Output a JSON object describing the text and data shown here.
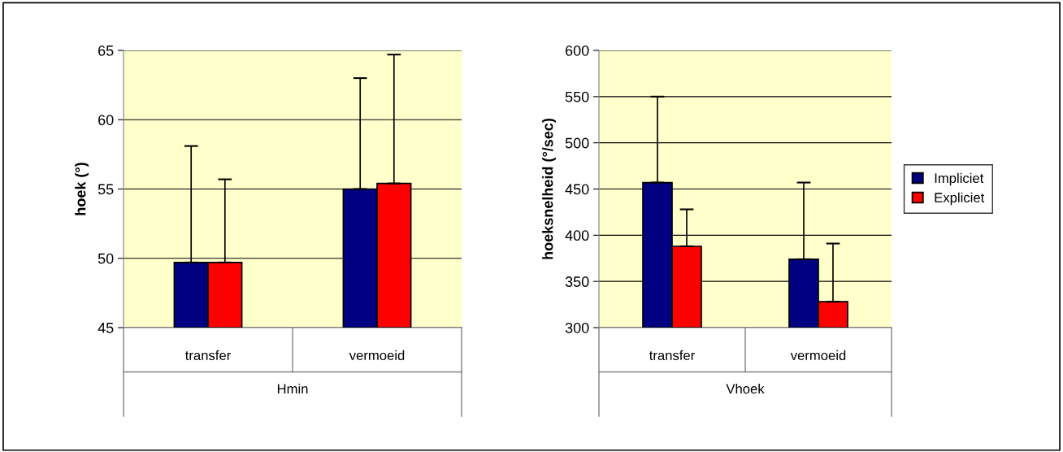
{
  "chart_data": [
    {
      "type": "bar",
      "categories": [
        "transfer",
        "vermoeid"
      ],
      "xlabel": "Hmin",
      "ylabel": "hoek (°)",
      "ylim": [
        45,
        65
      ],
      "yticks": [
        45,
        50,
        55,
        60,
        65
      ],
      "grid": "y",
      "legend": false,
      "series": [
        {
          "color": "#000080",
          "values": [
            49.7,
            55.0
          ],
          "errors": [
            [
              49.7,
              58.1
            ],
            [
              55.0,
              63.0
            ]
          ]
        },
        {
          "color": "#ff0000",
          "values": [
            49.7,
            55.4
          ],
          "errors": [
            [
              49.7,
              55.7
            ],
            [
              55.4,
              64.7
            ]
          ]
        }
      ]
    },
    {
      "type": "bar",
      "categories": [
        "transfer",
        "vermoeid"
      ],
      "xlabel": "Vhoek",
      "ylabel": "hoeksnelheid (°/sec)",
      "ylim": [
        300,
        600
      ],
      "yticks": [
        300,
        350,
        400,
        450,
        500,
        550,
        600
      ],
      "grid": "y",
      "legend": "right",
      "series": [
        {
          "name": "Impliciet",
          "color": "#000080",
          "values": [
            457,
            374
          ],
          "errors": [
            [
              457,
              550
            ],
            [
              374,
              457
            ]
          ]
        },
        {
          "name": "Expliciet",
          "color": "#ff0000",
          "values": [
            388,
            328
          ],
          "errors": [
            [
              388,
              428
            ],
            [
              328,
              391
            ]
          ]
        }
      ]
    }
  ]
}
